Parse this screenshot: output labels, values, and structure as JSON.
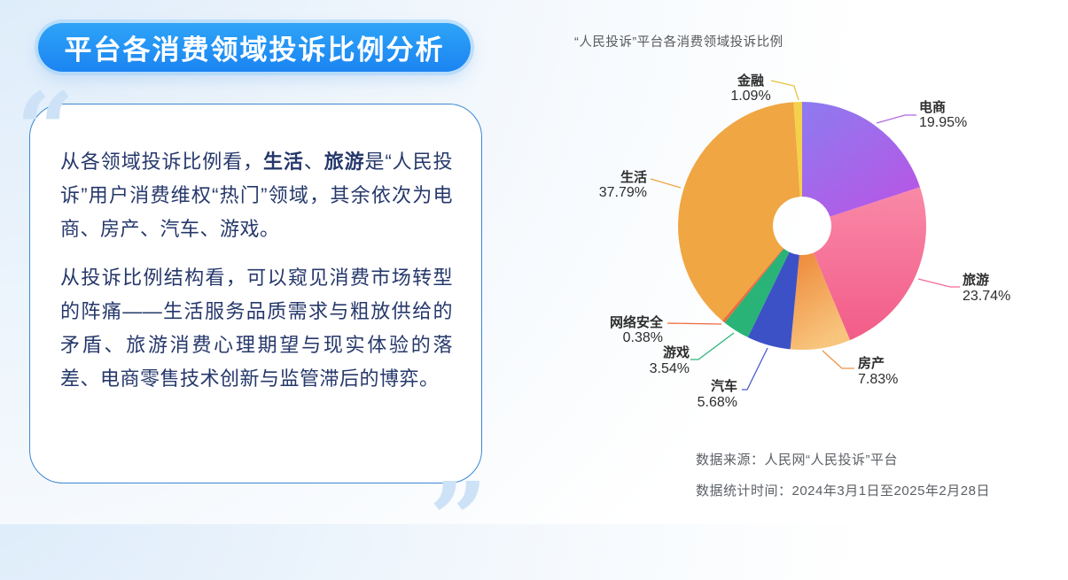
{
  "banner": {
    "title": "平台各消费领域投诉比例分析"
  },
  "card": {
    "p1_pre": "从各领域投诉比例看，",
    "p1_bold1": "生活",
    "p1_sep": "、",
    "p1_bold2": "旅游",
    "p1_post": "是“人民投诉”用户消费维权“热门”领域，其余依次为电商、房产、汽车、游戏。",
    "p2": "从投诉比例结构看，可以窥见消费市场转型的阵痛——生活服务品质需求与粗放供给的矛盾、旅游消费心理期望与现实体验的落差、电商零售技术创新与监管滞后的博弈。"
  },
  "chart": {
    "title": "“人民投诉”平台各消费领域投诉比例",
    "source_line1": "数据来源：人民网“人民投诉”平台",
    "source_line2": "数据统计时间：2024年3月1日至2025年2月28日"
  },
  "colors": {
    "accent_blue": "#1e8af2",
    "card_border_blue": "#3a87d2",
    "text_navy": "#26386b",
    "quote_blue": "#cde2f7",
    "chart_title_gray": "#58595b",
    "source_gray": "#5c6066"
  },
  "chart_data": {
    "type": "pie",
    "title": "“人民投诉”平台各消费领域投诉比例",
    "donut": true,
    "direction": "clockwise",
    "start_angle_deg": 0,
    "unit": "%",
    "slices": [
      {
        "name": "电商",
        "value": 19.95,
        "color": "#8d7bf0",
        "color2": "#b558e6"
      },
      {
        "name": "旅游",
        "value": 23.74,
        "color": "#f989a7",
        "color2": "#f25c88"
      },
      {
        "name": "房产",
        "value": 7.83,
        "color": "#ed8738",
        "color2": "#f8c57d"
      },
      {
        "name": "汽车",
        "value": 5.68,
        "color": "#3c51c6"
      },
      {
        "name": "游戏",
        "value": 3.54,
        "color": "#29b377"
      },
      {
        "name": "网络安全",
        "value": 0.38,
        "color": "#ef6a3a"
      },
      {
        "name": "生活",
        "value": 37.79,
        "color": "#f0a642"
      },
      {
        "name": "金融",
        "value": 1.09,
        "color": "#f5d04a"
      }
    ]
  }
}
